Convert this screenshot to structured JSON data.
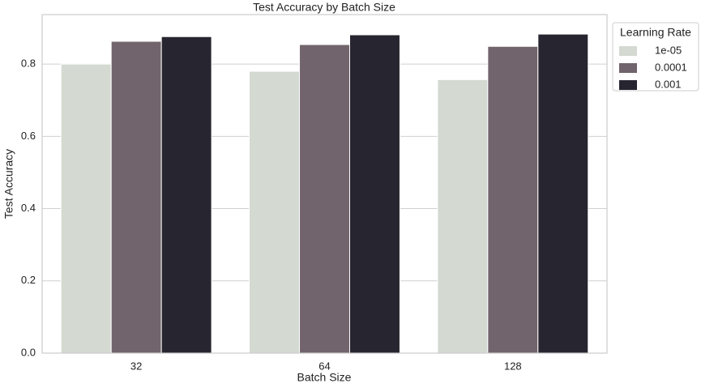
{
  "chart_data": {
    "type": "bar",
    "title": "Test Accuracy by Batch Size",
    "x_label": "Batch Size",
    "y_label": "Test Accuracy",
    "categories": [
      "32",
      "64",
      "128"
    ],
    "series": [
      {
        "name": "1e-05",
        "color": "#d4d9d2",
        "values": [
          0.8,
          0.78,
          0.757
        ]
      },
      {
        "name": "0.0001",
        "color": "#72646c",
        "values": [
          0.863,
          0.854,
          0.849
        ]
      },
      {
        "name": "0.001",
        "color": "#27252f",
        "values": [
          0.876,
          0.881,
          0.883
        ]
      }
    ],
    "legend_title": "Learning Rate",
    "legend_position": "outside-upper-right",
    "ylim": [
      0,
      0.937
    ],
    "yticks": [
      {
        "value": 0,
        "label": "0.0"
      },
      0.2,
      0.4,
      0.6,
      0.8
    ],
    "grid": true
  }
}
